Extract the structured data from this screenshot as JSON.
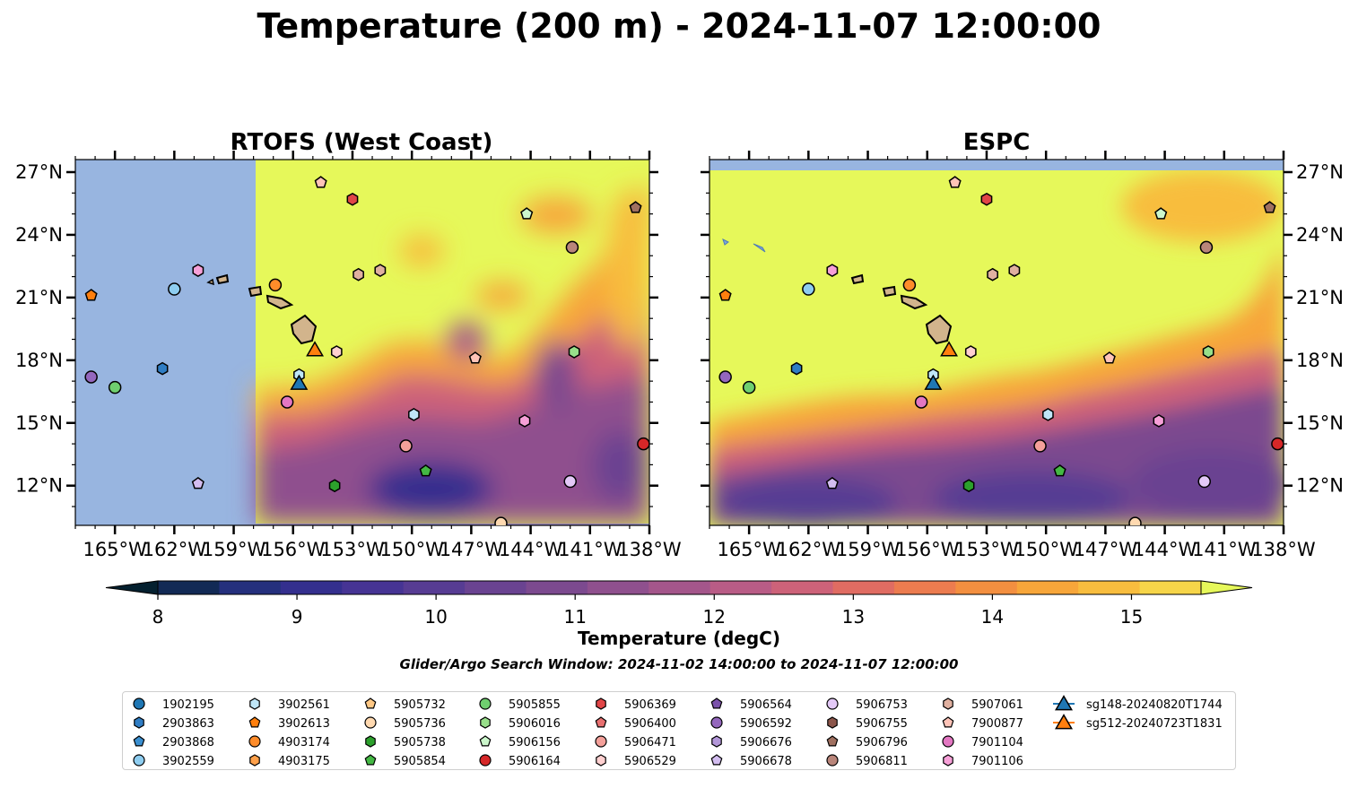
{
  "title": "Temperature (200 m) - 2024-11-07 12:00:00",
  "panels": [
    {
      "title": "RTOFS (West Coast)"
    },
    {
      "title": "ESPC"
    }
  ],
  "chart_data": {
    "type": "heatmap",
    "x_tick_labels": [
      "165°W",
      "162°W",
      "159°W",
      "156°W",
      "153°W",
      "150°W",
      "147°W",
      "144°W",
      "141°W",
      "138°W"
    ],
    "x_ticks": [
      -165,
      -162,
      -159,
      -156,
      -153,
      -150,
      -147,
      -144,
      -141,
      -138
    ],
    "y_tick_labels": [
      "27°N",
      "24°N",
      "21°N",
      "18°N",
      "15°N",
      "12°N"
    ],
    "y_ticks": [
      27,
      24,
      21,
      18,
      15,
      12
    ],
    "xlim": [
      -167,
      -138
    ],
    "ylim": [
      10.1,
      27.6
    ],
    "colorbar": {
      "label": "Temperature (degC)",
      "ticks": [
        "8",
        "9",
        "10",
        "11",
        "12",
        "13",
        "14",
        "15"
      ],
      "range": [
        7.5,
        15.5
      ],
      "extend": "both",
      "colors": [
        "#04202f",
        "#122a55",
        "#25307d",
        "#342f8e",
        "#463494",
        "#573c93",
        "#6a4391",
        "#7c4a8f",
        "#8f508e",
        "#a4568b",
        "#b95c86",
        "#cd6279",
        "#e06c62",
        "#ec7c4f",
        "#f38f40",
        "#f7a63a",
        "#f8bd3e",
        "#f6d549",
        "#e6f85a"
      ]
    },
    "search_window": "Glider/Argo Search Window: 2024-11-02 14:00:00 to 2024-11-07 12:00:00",
    "series": [
      {
        "name": "1902195",
        "marker": "circle",
        "color": "#1f77b4",
        "points": []
      },
      {
        "name": "2903863",
        "marker": "hexagon",
        "color": "#2f7dc4",
        "points": [
          [
            -162.6,
            17.6
          ]
        ]
      },
      {
        "name": "2903868",
        "marker": "pentagon",
        "color": "#3a8fd0",
        "points": []
      },
      {
        "name": "3902559",
        "marker": "circle",
        "color": "#8ecdf0",
        "points": [
          [
            -162.0,
            21.4
          ]
        ]
      },
      {
        "name": "3902561",
        "marker": "hexagon",
        "color": "#bfe6f7",
        "points": [
          [
            -149.9,
            15.4
          ],
          [
            -155.7,
            17.3
          ]
        ]
      },
      {
        "name": "3902613",
        "marker": "pentagon",
        "color": "#ff7f0e",
        "points": [
          [
            -166.2,
            21.1
          ]
        ]
      },
      {
        "name": "4903174",
        "marker": "circle",
        "color": "#ff8c2a",
        "points": [
          [
            -156.9,
            21.6
          ]
        ]
      },
      {
        "name": "4903175",
        "marker": "hexagon",
        "color": "#ffa04a",
        "points": []
      },
      {
        "name": "5905732",
        "marker": "pentagon",
        "color": "#ffc885",
        "points": []
      },
      {
        "name": "5905736",
        "marker": "circle",
        "color": "#ffd9b0",
        "points": [
          [
            -145.5,
            10.2
          ]
        ]
      },
      {
        "name": "5905738",
        "marker": "hexagon",
        "color": "#2ca02c",
        "points": [
          [
            -153.9,
            12.0
          ]
        ]
      },
      {
        "name": "5905854",
        "marker": "pentagon",
        "color": "#44b844",
        "points": [
          [
            -149.3,
            12.7
          ]
        ]
      },
      {
        "name": "5905855",
        "marker": "circle",
        "color": "#6fcf6f",
        "points": [
          [
            -165.0,
            16.7
          ]
        ]
      },
      {
        "name": "5906016",
        "marker": "hexagon",
        "color": "#98df8a",
        "points": [
          [
            -141.8,
            18.4
          ]
        ]
      },
      {
        "name": "5906156",
        "marker": "pentagon",
        "color": "#ccf7cc",
        "points": [
          [
            -144.2,
            25.0
          ]
        ]
      },
      {
        "name": "5906164",
        "marker": "circle",
        "color": "#d62728",
        "points": [
          [
            -138.3,
            14.0
          ]
        ]
      },
      {
        "name": "5906369",
        "marker": "hexagon",
        "color": "#e04547",
        "points": [
          [
            -153.0,
            25.7
          ]
        ]
      },
      {
        "name": "5906400",
        "marker": "pentagon",
        "color": "#e87070",
        "points": []
      },
      {
        "name": "5906471",
        "marker": "circle",
        "color": "#f4a09a",
        "points": [
          [
            -150.3,
            13.9
          ]
        ]
      },
      {
        "name": "5906529",
        "marker": "hexagon",
        "color": "#ffd0d0",
        "points": [
          [
            -153.8,
            18.4
          ]
        ]
      },
      {
        "name": "5906564",
        "marker": "pentagon",
        "color": "#7b52ab",
        "points": []
      },
      {
        "name": "5906592",
        "marker": "circle",
        "color": "#9467bd",
        "points": [
          [
            -166.2,
            17.2
          ]
        ]
      },
      {
        "name": "5906676",
        "marker": "hexagon",
        "color": "#b397d9",
        "points": []
      },
      {
        "name": "5906678",
        "marker": "pentagon",
        "color": "#d3bdf0",
        "points": [
          [
            -160.8,
            12.1
          ]
        ]
      },
      {
        "name": "5906753",
        "marker": "circle",
        "color": "#e3c9f7",
        "points": [
          [
            -142.0,
            12.2
          ]
        ]
      },
      {
        "name": "5906755",
        "marker": "hexagon",
        "color": "#8c564b",
        "points": []
      },
      {
        "name": "5906796",
        "marker": "pentagon",
        "color": "#a07060",
        "points": [
          [
            -138.7,
            25.3
          ]
        ]
      },
      {
        "name": "5906811",
        "marker": "circle",
        "color": "#b9857a",
        "points": [
          [
            -141.9,
            23.4
          ]
        ]
      },
      {
        "name": "5907061",
        "marker": "hexagon",
        "color": "#e0b0a0",
        "points": [
          [
            -152.7,
            22.1
          ],
          [
            -151.6,
            22.3
          ]
        ]
      },
      {
        "name": "7900877",
        "marker": "pentagon",
        "color": "#ffc4b8",
        "points": [
          [
            -154.6,
            26.5
          ],
          [
            -146.8,
            18.1
          ]
        ]
      },
      {
        "name": "7901104",
        "marker": "circle",
        "color": "#e377c2",
        "points": [
          [
            -156.3,
            16.0
          ]
        ]
      },
      {
        "name": "7901106",
        "marker": "hexagon",
        "color": "#f7a0d8",
        "points": [
          [
            -160.8,
            22.3
          ],
          [
            -144.3,
            15.1
          ]
        ]
      },
      {
        "name": "sg148-20240820T1744",
        "marker": "triangle",
        "color": "#1f77b4",
        "points": [
          [
            -155.7,
            16.9
          ]
        ]
      },
      {
        "name": "sg512-20240723T1831",
        "marker": "triangle",
        "color": "#ff7f0e",
        "points": [
          [
            -154.9,
            18.5
          ]
        ]
      }
    ]
  }
}
